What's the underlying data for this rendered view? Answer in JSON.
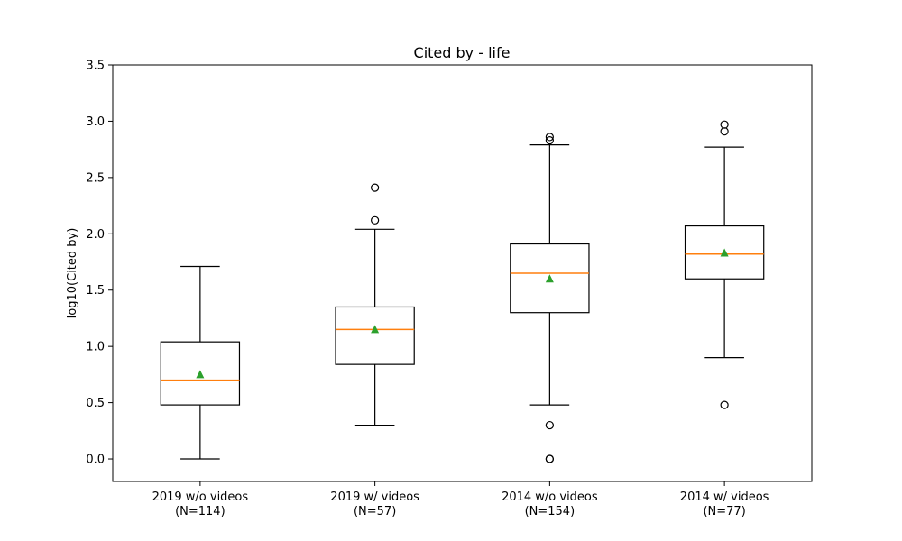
{
  "chart_data": {
    "type": "box",
    "title": "Cited by - life",
    "xlabel": "",
    "ylabel": "log10(Cited by)",
    "ylim": [
      -0.2,
      3.5
    ],
    "yticks": [
      "0.0",
      "0.5",
      "1.0",
      "1.5",
      "2.0",
      "2.5",
      "3.0",
      "3.5"
    ],
    "grid": false,
    "legend": "none",
    "colors": {
      "box": "#000000",
      "median": "#ff7f0e",
      "mean": "#2ca02c",
      "flier": "#000000"
    },
    "categories": [
      {
        "label": "2019 w/o videos",
        "n_label": "(N=114)"
      },
      {
        "label": "2019 w/ videos",
        "n_label": "(N=57)"
      },
      {
        "label": "2014 w/o videos",
        "n_label": "(N=154)"
      },
      {
        "label": "2014 w/ videos",
        "n_label": "(N=77)"
      }
    ],
    "boxes": [
      {
        "whisker_low": 0.0,
        "q1": 0.48,
        "median": 0.7,
        "q3": 1.04,
        "whisker_high": 1.71,
        "mean": 0.75,
        "fliers": []
      },
      {
        "whisker_low": 0.3,
        "q1": 0.84,
        "median": 1.15,
        "q3": 1.35,
        "whisker_high": 2.04,
        "mean": 1.15,
        "fliers": [
          2.12,
          2.41
        ]
      },
      {
        "whisker_low": 0.48,
        "q1": 1.3,
        "median": 1.65,
        "q3": 1.91,
        "whisker_high": 2.79,
        "mean": 1.6,
        "fliers": [
          0.0,
          0.0,
          0.3,
          2.83,
          2.86
        ]
      },
      {
        "whisker_low": 0.9,
        "q1": 1.6,
        "median": 1.82,
        "q3": 2.07,
        "whisker_high": 2.77,
        "mean": 1.83,
        "fliers": [
          0.48,
          2.91,
          2.97
        ]
      }
    ]
  }
}
